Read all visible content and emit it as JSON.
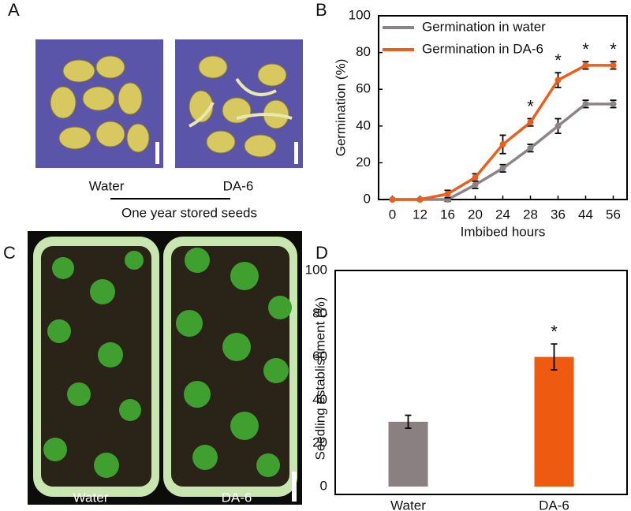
{
  "panel_labels": [
    "A",
    "B",
    "C",
    "D"
  ],
  "photo_a": {
    "labels": [
      "Water",
      "DA-6"
    ],
    "caption": "One year stored seeds"
  },
  "photo_c": {
    "labels": [
      "Water",
      "DA-6"
    ]
  },
  "chart_data": [
    {
      "type": "line",
      "xlabel": "Imbibed hours",
      "ylabel": "Germination (%)",
      "categories": [
        "0",
        "12",
        "16",
        "20",
        "24",
        "28",
        "36",
        "44",
        "56"
      ],
      "series": [
        {
          "name": "Germination in water",
          "color": "#8c8486",
          "values": [
            0,
            0,
            0,
            8,
            17,
            28,
            40,
            52,
            52
          ],
          "errors": [
            0,
            0,
            1,
            2,
            2,
            2,
            4,
            2,
            2
          ]
        },
        {
          "name": "Germination in DA-6",
          "color": "#e8601c",
          "values": [
            0,
            0,
            3,
            12,
            30,
            42,
            65,
            73,
            73
          ],
          "errors": [
            0,
            0,
            2,
            2,
            5,
            2,
            4,
            2,
            2
          ],
          "significance": [
            null,
            null,
            null,
            null,
            null,
            "*",
            "*",
            "*",
            "*"
          ]
        }
      ],
      "ylim": [
        0,
        100
      ],
      "yticks": [
        0,
        20,
        40,
        60,
        80,
        100
      ],
      "legend": "top-left"
    },
    {
      "type": "bar",
      "ylabel": "Seedling establishment (%)",
      "categories": [
        "Water",
        "DA-6"
      ],
      "values": [
        30,
        60
      ],
      "errors": [
        3,
        6
      ],
      "colors": [
        "#8a8082",
        "#ee5a0f"
      ],
      "significance": [
        null,
        "*"
      ],
      "ylim": [
        0,
        100
      ],
      "yticks": [
        0,
        20,
        40,
        60,
        80,
        100
      ]
    }
  ]
}
